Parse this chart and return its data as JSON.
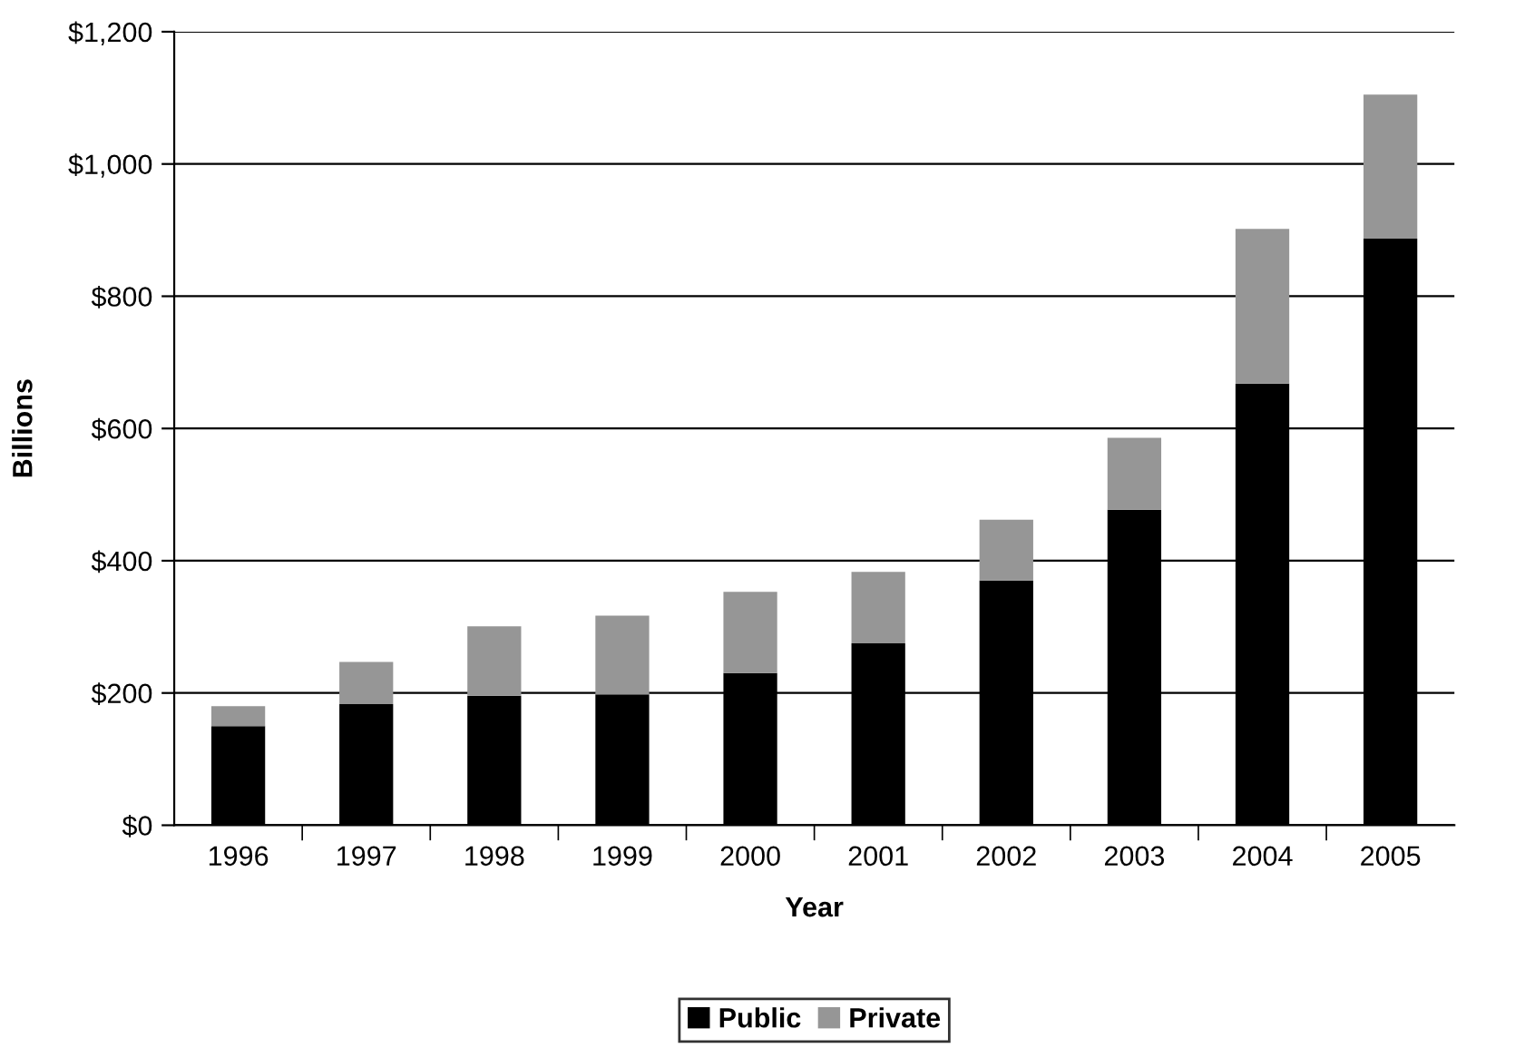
{
  "chart_data": {
    "type": "bar",
    "stacked": true,
    "xlabel": "Year",
    "ylabel": "Billions",
    "categories": [
      "1996",
      "1997",
      "1998",
      "1999",
      "2000",
      "2001",
      "2002",
      "2003",
      "2004",
      "2005"
    ],
    "series": [
      {
        "name": "Public",
        "color": "#000000",
        "values": [
          150,
          183,
          196,
          198,
          230,
          275,
          370,
          477,
          668,
          887
        ]
      },
      {
        "name": "Private",
        "color": "#969696",
        "values": [
          30,
          64,
          105,
          119,
          123,
          108,
          92,
          109,
          234,
          218
        ]
      }
    ],
    "ylim": [
      0,
      1200
    ],
    "yticks": [
      {
        "value": 0,
        "label": "$0"
      },
      {
        "value": 200,
        "label": "$200"
      },
      {
        "value": 400,
        "label": "$400"
      },
      {
        "value": 600,
        "label": "$600"
      },
      {
        "value": 800,
        "label": "$800"
      },
      {
        "value": 1000,
        "label": "$1,000"
      },
      {
        "value": 1200,
        "label": "$1,200"
      }
    ],
    "grid": "y",
    "legend": "bottom"
  }
}
